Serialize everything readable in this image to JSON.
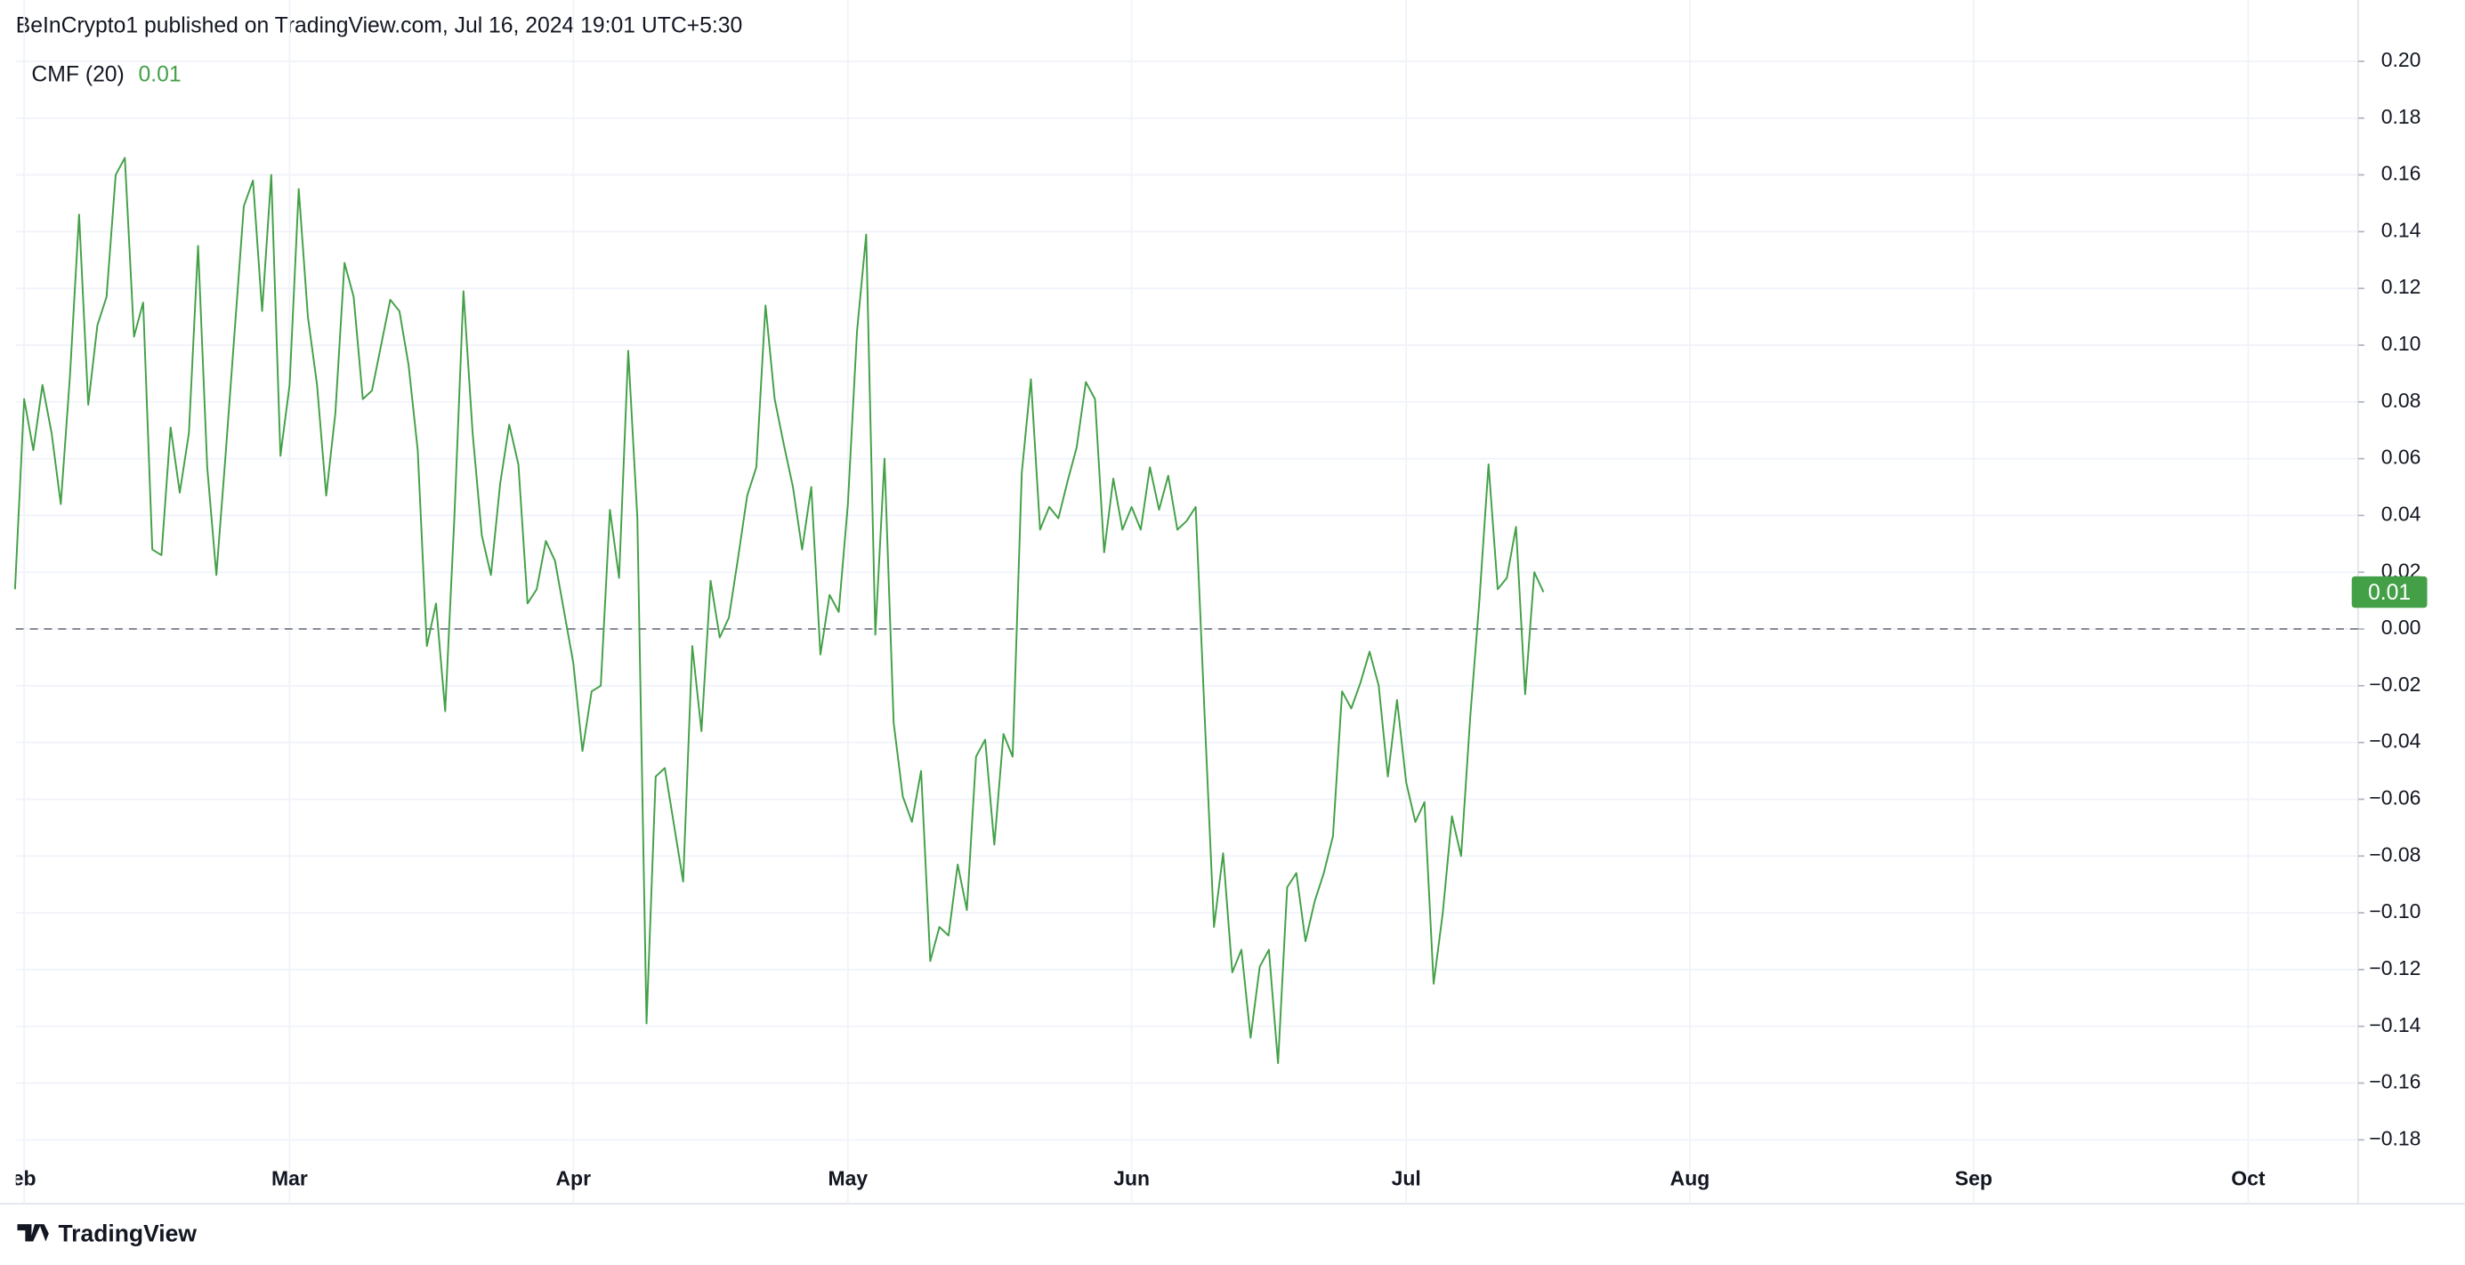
{
  "chart_data": {
    "type": "line",
    "source": "BeInCrypto1 published on TradingView.com, Jul 16, 2024 19:01 UTC+5:30",
    "brand": "TradingView",
    "legend_value": "0.01",
    "last_value_label": "0.01",
    "categories": [
      null,
      "eb",
      null,
      null,
      null,
      null,
      null,
      null,
      null,
      null,
      null,
      null,
      null,
      null,
      null,
      null,
      null,
      null,
      null,
      null,
      null,
      null,
      null,
      null,
      null,
      null,
      null,
      null,
      null,
      null,
      "Mar",
      null,
      null,
      null,
      null,
      null,
      null,
      null,
      null,
      null,
      null,
      null,
      null,
      null,
      null,
      null,
      null,
      null,
      null,
      null,
      null,
      null,
      null,
      null,
      null,
      null,
      null,
      null,
      null,
      null,
      null,
      "Apr",
      null,
      null,
      null,
      null,
      null,
      null,
      null,
      null,
      null,
      null,
      null,
      null,
      null,
      null,
      null,
      null,
      null,
      null,
      null,
      null,
      null,
      null,
      null,
      null,
      null,
      null,
      null,
      null,
      null,
      "May",
      null,
      null,
      null,
      null,
      null,
      null,
      null,
      null,
      null,
      null,
      null,
      null,
      null,
      null,
      null,
      null,
      null,
      null,
      null,
      null,
      null,
      null,
      null,
      null,
      null,
      null,
      null,
      null,
      null,
      null,
      "Jun",
      null,
      null,
      null,
      null,
      null,
      null,
      null,
      null,
      null,
      null,
      null,
      null,
      null,
      null,
      null,
      null,
      null,
      null,
      null,
      null,
      null,
      null,
      null,
      null,
      null,
      null,
      null,
      null,
      null,
      "Jul",
      null,
      null,
      null,
      null,
      null,
      null,
      null,
      null,
      null,
      null,
      null,
      null,
      null,
      null,
      null,
      null,
      null,
      null,
      null,
      null,
      null,
      null,
      null,
      null,
      null,
      null,
      null,
      null,
      null,
      null,
      "Aug",
      null,
      null,
      null,
      null,
      null,
      null,
      null,
      null,
      null,
      null,
      null,
      null,
      null,
      null,
      null,
      null,
      null,
      null,
      null,
      null,
      null,
      null,
      null,
      null,
      null,
      null,
      null,
      null,
      null,
      null,
      "Sep",
      null,
      null,
      null,
      null,
      null,
      null,
      null,
      null,
      null,
      null,
      null,
      null,
      null,
      null,
      null,
      null,
      null,
      null,
      null,
      null,
      null,
      null,
      null,
      null,
      null,
      null,
      null,
      null,
      null,
      "Oct",
      null,
      null,
      null,
      null,
      null,
      null,
      null,
      null,
      null,
      null,
      null,
      null
    ],
    "series": [
      {
        "name": "CMF (20)",
        "color": "#43a047",
        "values": [
          0.014,
          0.081,
          0.063,
          0.086,
          0.069,
          0.044,
          0.089,
          0.146,
          0.079,
          0.107,
          0.117,
          0.16,
          0.166,
          0.103,
          0.115,
          0.028,
          0.026,
          0.071,
          0.048,
          0.069,
          0.135,
          0.057,
          0.019,
          0.061,
          0.105,
          0.149,
          0.158,
          0.112,
          0.16,
          0.061,
          0.086,
          0.155,
          0.11,
          0.086,
          0.047,
          0.076,
          0.129,
          0.117,
          0.081,
          0.084,
          0.1,
          0.116,
          0.112,
          0.093,
          0.063,
          -0.006,
          0.009,
          -0.029,
          0.039,
          0.119,
          0.069,
          0.033,
          0.019,
          0.051,
          0.072,
          0.058,
          0.009,
          0.014,
          0.031,
          0.024,
          0.006,
          -0.012,
          -0.043,
          -0.022,
          -0.02,
          0.042,
          0.018,
          0.098,
          0.039,
          -0.139,
          -0.052,
          -0.049,
          -0.069,
          -0.089,
          -0.006,
          -0.036,
          0.017,
          -0.003,
          0.004,
          0.025,
          0.047,
          0.057,
          0.114,
          0.081,
          0.065,
          0.05,
          0.028,
          0.05,
          -0.009,
          0.012,
          0.006,
          0.044,
          0.105,
          0.139,
          -0.002,
          0.06,
          -0.033,
          -0.059,
          -0.068,
          -0.05,
          -0.117,
          -0.105,
          -0.108,
          -0.083,
          -0.099,
          -0.045,
          -0.039,
          -0.076,
          -0.037,
          -0.045,
          0.055,
          0.088,
          0.035,
          0.043,
          0.039,
          0.052,
          0.064,
          0.087,
          0.081,
          0.027,
          0.053,
          0.035,
          0.043,
          0.035,
          0.057,
          0.042,
          0.054,
          0.035,
          0.038,
          0.043,
          -0.032,
          -0.105,
          -0.079,
          -0.121,
          -0.113,
          -0.144,
          -0.119,
          -0.113,
          -0.153,
          -0.091,
          -0.086,
          -0.11,
          -0.096,
          -0.086,
          -0.073,
          -0.022,
          -0.028,
          -0.019,
          -0.008,
          -0.02,
          -0.052,
          -0.025,
          -0.054,
          -0.068,
          -0.061,
          -0.125,
          -0.1,
          -0.066,
          -0.08,
          -0.031,
          0.01,
          0.058,
          0.014,
          0.018,
          0.036,
          -0.023,
          0.02,
          0.013,
          null,
          null,
          null,
          null,
          null,
          null,
          null,
          null,
          null,
          null,
          null,
          null,
          null,
          null,
          null,
          null,
          null,
          null,
          null,
          null,
          null,
          null,
          null,
          null,
          null,
          null,
          null,
          null,
          null,
          null,
          null,
          null,
          null,
          null,
          null,
          null,
          null,
          null,
          null,
          null,
          null,
          null,
          null,
          null,
          null,
          null,
          null,
          null,
          null,
          null,
          null,
          null,
          null,
          null,
          null,
          null,
          null,
          null,
          null,
          null,
          null,
          null,
          null,
          null,
          null,
          null,
          null,
          null,
          null,
          null,
          null,
          null,
          null,
          null,
          null,
          null,
          null,
          null,
          null,
          null,
          null,
          null,
          null,
          null,
          null,
          null,
          null,
          null,
          null
        ]
      }
    ],
    "hline": 0,
    "ylim": [
      -0.187,
      0.205
    ],
    "yticks": [
      {
        "value": 0.2,
        "label": "0.20"
      },
      {
        "value": 0.18,
        "label": "0.18"
      },
      {
        "value": 0.16,
        "label": "0.16"
      },
      {
        "value": 0.14,
        "label": "0.14"
      },
      {
        "value": 0.12,
        "label": "0.12"
      },
      {
        "value": 0.1,
        "label": "0.10"
      },
      {
        "value": 0.08,
        "label": "0.08"
      },
      {
        "value": 0.06,
        "label": "0.06"
      },
      {
        "value": 0.04,
        "label": "0.04"
      },
      {
        "value": 0.02,
        "label": "0.02"
      },
      {
        "value": 0,
        "label": "0.00"
      },
      {
        "value": -0.02,
        "label": "−0.02"
      },
      {
        "value": -0.04,
        "label": "−0.04"
      },
      {
        "value": -0.06,
        "label": "−0.06"
      },
      {
        "value": -0.08,
        "label": "−0.08"
      },
      {
        "value": -0.1,
        "label": "−0.10"
      },
      {
        "value": -0.12,
        "label": "−0.12"
      },
      {
        "value": -0.14,
        "label": "−0.14"
      },
      {
        "value": -0.16,
        "label": "−0.16"
      },
      {
        "value": -0.18,
        "label": "−0.18"
      }
    ],
    "grid": true
  }
}
